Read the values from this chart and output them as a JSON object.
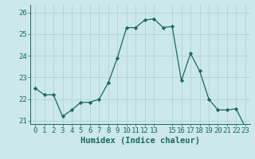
{
  "x": [
    0,
    1,
    2,
    3,
    4,
    5,
    6,
    7,
    8,
    9,
    10,
    11,
    12,
    13,
    14,
    15,
    16,
    17,
    18,
    19,
    20,
    21,
    22,
    23
  ],
  "y": [
    22.5,
    22.2,
    22.2,
    21.2,
    21.5,
    21.85,
    21.85,
    22.0,
    22.75,
    23.9,
    25.3,
    25.3,
    25.65,
    25.7,
    25.3,
    25.35,
    22.85,
    24.1,
    23.3,
    22.0,
    21.5,
    21.5,
    21.55,
    20.7
  ],
  "line_color": "#1a6b5a",
  "marker": "D",
  "marker_size": 2.2,
  "bg_color": "#cce8ec",
  "grid_color": "#aacfd5",
  "xlabel": "Humidex (Indice chaleur)",
  "ylim": [
    20.85,
    26.35
  ],
  "xlim": [
    -0.5,
    23.5
  ],
  "yticks": [
    21,
    22,
    23,
    24,
    25,
    26
  ],
  "xticks": [
    0,
    1,
    2,
    3,
    4,
    5,
    6,
    7,
    8,
    9,
    10,
    11,
    12,
    13,
    15,
    16,
    17,
    18,
    19,
    20,
    21,
    22,
    23
  ],
  "tick_fontsize": 6.5,
  "xlabel_fontsize": 7.5
}
